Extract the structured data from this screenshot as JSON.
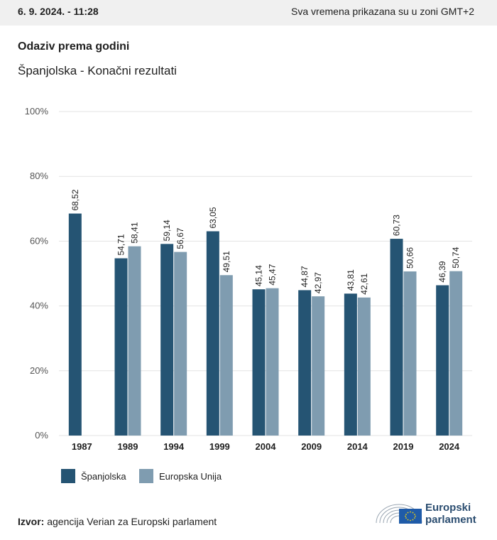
{
  "header": {
    "date": "6. 9. 2024. - 11:28",
    "timezone_note": "Sva vremena prikazana su u zoni GMT+2"
  },
  "title": "Odaziv prema godini",
  "subtitle": "Španjolska - Konačni rezultati",
  "colors": {
    "spain": "#255473",
    "eu": "#7f9cb0",
    "grid": "#e3e3e3",
    "logo": "#2b4d70",
    "eu_flag": "#1f5ba8"
  },
  "chart_data": {
    "type": "bar",
    "categories": [
      "1987",
      "1989",
      "1994",
      "1999",
      "2004",
      "2009",
      "2014",
      "2019",
      "2024"
    ],
    "series": [
      {
        "name": "Španjolska",
        "values": [
          68.52,
          54.71,
          59.14,
          63.05,
          45.14,
          44.87,
          43.81,
          60.73,
          46.39
        ],
        "labels": [
          "68,52",
          "54,71",
          "59,14",
          "63,05",
          "45,14",
          "44,87",
          "43,81",
          "60,73",
          "46,39"
        ]
      },
      {
        "name": "Europska Unija",
        "values": [
          null,
          58.41,
          56.67,
          49.51,
          45.47,
          42.97,
          42.61,
          50.66,
          50.74
        ],
        "labels": [
          "",
          "58,41",
          "56,67",
          "49,51",
          "45,47",
          "42,97",
          "42,61",
          "50,66",
          "50,74"
        ]
      }
    ],
    "yticks": [
      "0%",
      "20%",
      "40%",
      "60%",
      "80%",
      "100%"
    ],
    "ylim": [
      0,
      100
    ],
    "grid": true,
    "legend_position": "bottom-left"
  },
  "legend": [
    {
      "label": "Španjolska"
    },
    {
      "label": "Europska Unija"
    }
  ],
  "source": {
    "prefix": "Izvor:",
    "text": " agencija Verian za Europski parlament"
  },
  "logo": {
    "line1": "Europski",
    "line2": "parlament"
  }
}
